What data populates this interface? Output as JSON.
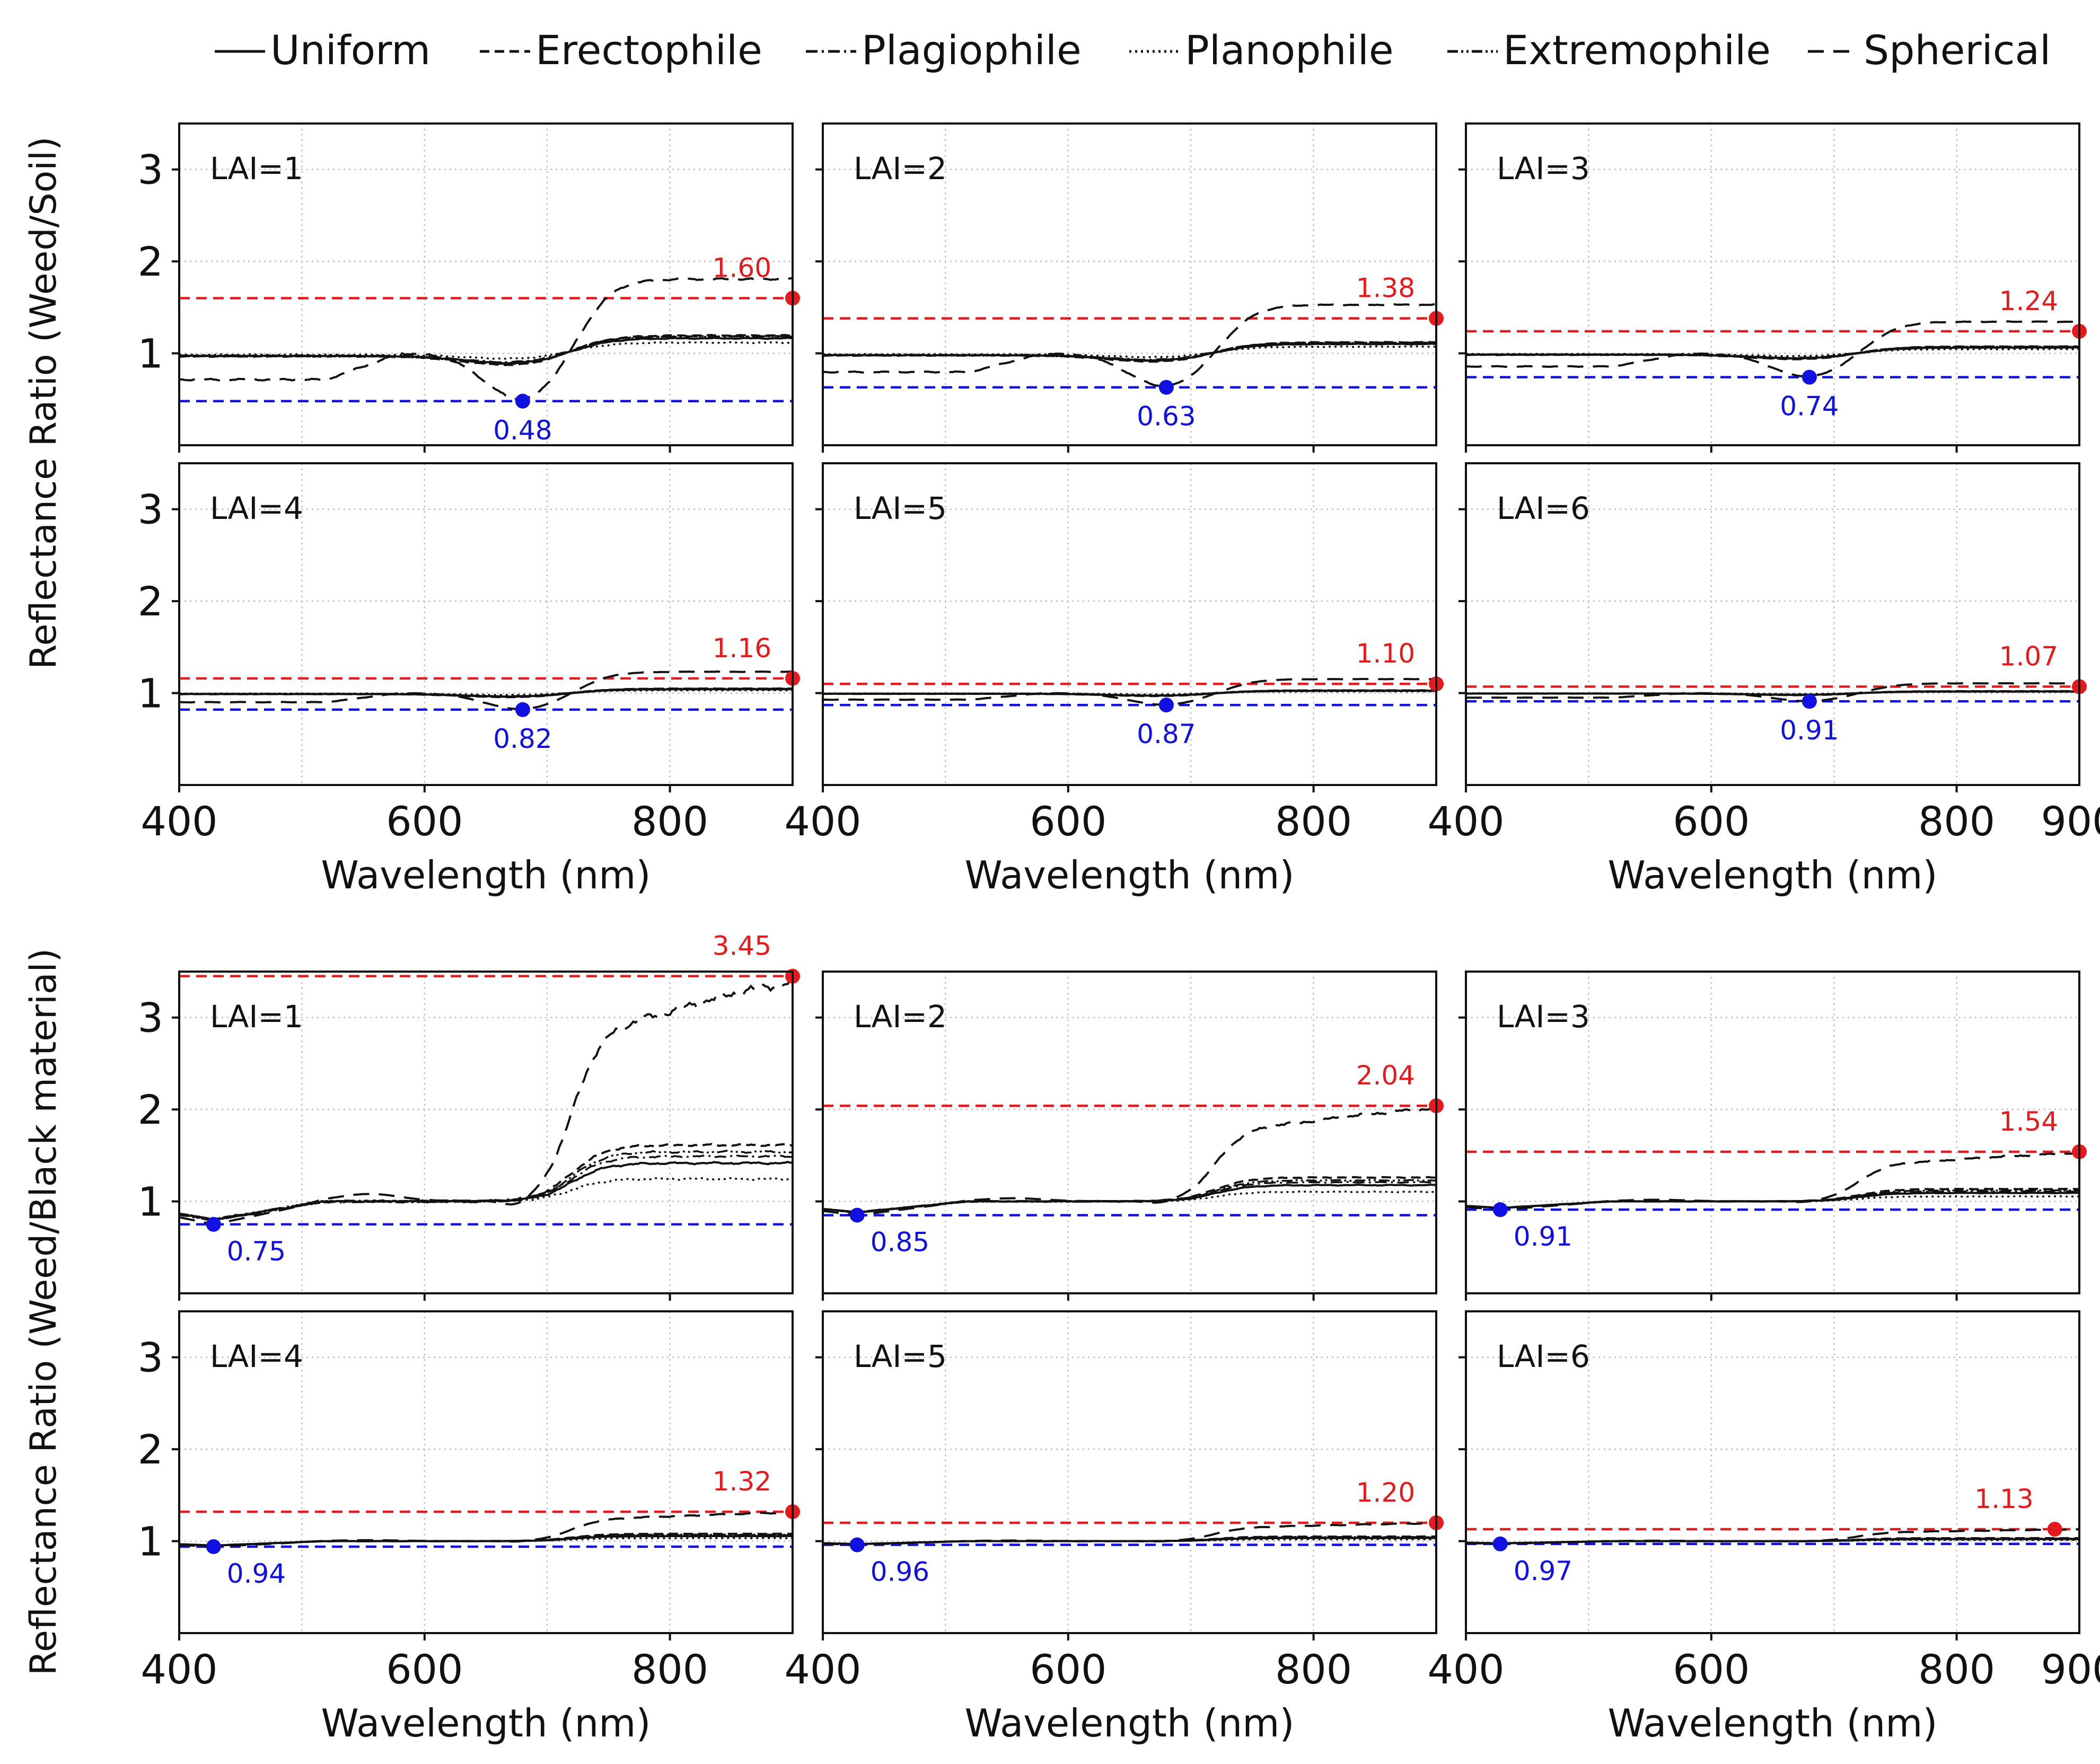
{
  "legend": [
    {
      "label": "Uniform",
      "dash": "solid"
    },
    {
      "label": "Erectophile",
      "dash": "dashed"
    },
    {
      "label": "Plagiophile",
      "dash": "dashdot"
    },
    {
      "label": "Planophile",
      "dash": "dotted"
    },
    {
      "label": "Extremophile",
      "dash": "dashdotdot"
    },
    {
      "label": "Spherical",
      "dash": "longdash"
    }
  ],
  "colors": {
    "max": "#e41a1c",
    "min": "#1010e0",
    "grid": "#bdbdbd",
    "line": "#111111"
  },
  "xlabel": "Wavelength (nm)",
  "chart_data": [
    {
      "type": "line",
      "title": "Weed/Soil",
      "ylabel": "Reflectance Ratio (Weed/Soil)",
      "xlabel": "Wavelength (nm)",
      "xlim": [
        400,
        900
      ],
      "ylim": [
        0,
        3.5
      ],
      "xticks": [
        400,
        600,
        800
      ],
      "yticks": [
        1,
        2,
        3
      ],
      "panels": [
        {
          "label": "LAI=1",
          "lai": 1,
          "max": {
            "label": "1.60",
            "value": 1.6,
            "x": 900
          },
          "min": {
            "label": "0.48",
            "value": 0.48,
            "x": 680
          }
        },
        {
          "label": "LAI=2",
          "lai": 2,
          "max": {
            "label": "1.38",
            "value": 1.38,
            "x": 900
          },
          "min": {
            "label": "0.63",
            "value": 0.63,
            "x": 680
          }
        },
        {
          "label": "LAI=3",
          "lai": 3,
          "max": {
            "label": "1.24",
            "value": 1.24,
            "x": 900
          },
          "min": {
            "label": "0.74",
            "value": 0.74,
            "x": 680
          }
        },
        {
          "label": "LAI=4",
          "lai": 4,
          "max": {
            "label": "1.16",
            "value": 1.16,
            "x": 900
          },
          "min": {
            "label": "0.82",
            "value": 0.82,
            "x": 680
          }
        },
        {
          "label": "LAI=5",
          "lai": 5,
          "max": {
            "label": "1.10",
            "value": 1.1,
            "x": 900
          },
          "min": {
            "label": "0.87",
            "value": 0.87,
            "x": 680
          }
        },
        {
          "label": "LAI=6",
          "lai": 6,
          "max": {
            "label": "1.07",
            "value": 1.07,
            "x": 900
          },
          "min": {
            "label": "0.91",
            "value": 0.91,
            "x": 680
          }
        }
      ]
    },
    {
      "type": "line",
      "title": "Weed/Black material",
      "ylabel": "Reflectance Ratio (Weed/Black material)",
      "xlabel": "Wavelength (nm)",
      "xlim": [
        400,
        900
      ],
      "ylim": [
        0,
        3.5
      ],
      "xticks": [
        400,
        600,
        800
      ],
      "yticks": [
        1,
        2,
        3
      ],
      "panels": [
        {
          "label": "LAI=1",
          "lai": 1,
          "max": {
            "label": "3.45",
            "value": 3.45,
            "x": 900
          },
          "min": {
            "label": "0.75",
            "value": 0.75,
            "x": 428
          }
        },
        {
          "label": "LAI=2",
          "lai": 2,
          "max": {
            "label": "2.04",
            "value": 2.04,
            "x": 900
          },
          "min": {
            "label": "0.85",
            "value": 0.85,
            "x": 428
          }
        },
        {
          "label": "LAI=3",
          "lai": 3,
          "max": {
            "label": "1.54",
            "value": 1.54,
            "x": 900
          },
          "min": {
            "label": "0.91",
            "value": 0.91,
            "x": 428
          }
        },
        {
          "label": "LAI=4",
          "lai": 4,
          "max": {
            "label": "1.32",
            "value": 1.32,
            "x": 900
          },
          "min": {
            "label": "0.94",
            "value": 0.94,
            "x": 428
          }
        },
        {
          "label": "LAI=5",
          "lai": 5,
          "max": {
            "label": "1.20",
            "value": 1.2,
            "x": 900
          },
          "min": {
            "label": "0.96",
            "value": 0.96,
            "x": 428
          }
        },
        {
          "label": "LAI=6",
          "lai": 6,
          "max": {
            "label": "1.13",
            "value": 1.13,
            "x": 880
          },
          "min": {
            "label": "0.97",
            "value": 0.97,
            "x": 428
          }
        }
      ]
    }
  ]
}
